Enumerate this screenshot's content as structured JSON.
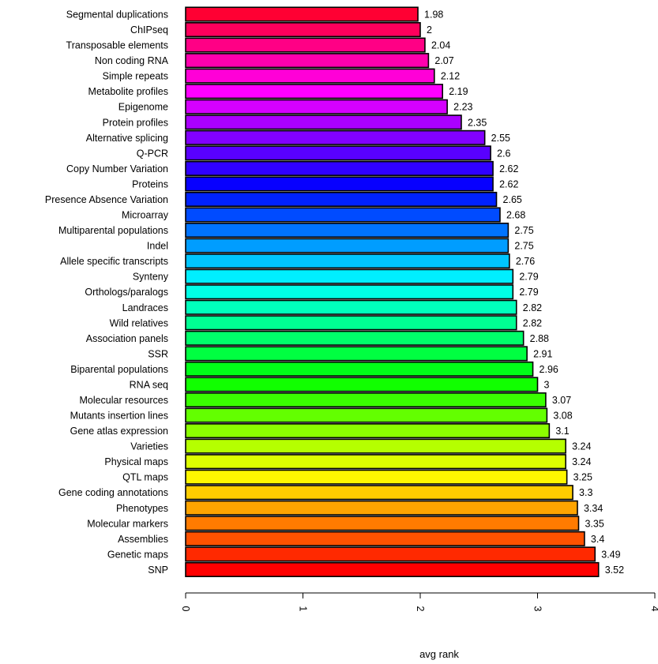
{
  "chart_data": {
    "type": "bar",
    "orientation": "horizontal",
    "xlabel": "avg rank",
    "xlim": [
      0,
      4
    ],
    "xticks": [
      "0",
      "1",
      "2",
      "3",
      "4"
    ],
    "categories": [
      "Segmental duplications",
      "ChIPseq",
      "Transposable elements",
      "Non coding RNA",
      "Simple repeats",
      "Metabolite profiles",
      "Epigenome",
      "Protein profiles",
      "Alternative splicing",
      "Q-PCR",
      "Copy Number Variation",
      "Proteins",
      "Presence Absence Variation",
      "Microarray",
      "Multiparental populations",
      "Indel",
      "Allele specific transcripts",
      "Synteny",
      "Orthologs/paralogs",
      "Landraces",
      "Wild relatives",
      "Association panels",
      "SSR",
      "Biparental populations",
      "RNA seq",
      "Molecular resources",
      "Mutants insertion lines",
      "Gene atlas expression",
      "Varieties",
      "Physical maps",
      "QTL maps",
      "Gene coding annotations",
      "Phenotypes",
      "Molecular markers",
      "Assemblies",
      "Genetic maps",
      "SNP"
    ],
    "values": [
      1.98,
      2,
      2.04,
      2.07,
      2.12,
      2.19,
      2.23,
      2.35,
      2.55,
      2.6,
      2.62,
      2.62,
      2.65,
      2.68,
      2.75,
      2.75,
      2.76,
      2.79,
      2.79,
      2.82,
      2.82,
      2.88,
      2.91,
      2.96,
      3,
      3.07,
      3.08,
      3.1,
      3.24,
      3.24,
      3.25,
      3.3,
      3.34,
      3.35,
      3.4,
      3.49,
      3.52
    ],
    "value_labels": [
      "1.98",
      "2",
      "2.04",
      "2.07",
      "2.12",
      "2.19",
      "2.23",
      "2.35",
      "2.55",
      "2.6",
      "2.62",
      "2.62",
      "2.65",
      "2.68",
      "2.75",
      "2.75",
      "2.76",
      "2.79",
      "2.79",
      "2.82",
      "2.82",
      "2.88",
      "2.91",
      "2.96",
      "3",
      "3.07",
      "3.08",
      "3.1",
      "3.24",
      "3.24",
      "3.25",
      "3.3",
      "3.34",
      "3.35",
      "3.4",
      "3.49",
      "3.52"
    ],
    "colormap": "rainbow (magenta-red at top through violet, blue, cyan, green, yellow to red at bottom)",
    "grid": false,
    "legend": "none"
  }
}
